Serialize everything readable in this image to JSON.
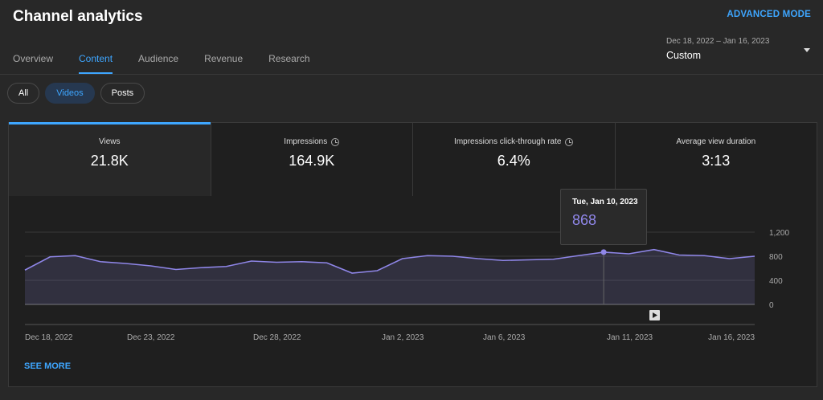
{
  "header": {
    "title": "Channel analytics",
    "advanced_mode": "ADVANCED MODE",
    "date_range": "Dec 18, 2022 – Jan 16, 2023",
    "date_preset": "Custom"
  },
  "tabs": [
    {
      "label": "Overview",
      "active": false
    },
    {
      "label": "Content",
      "active": true
    },
    {
      "label": "Audience",
      "active": false
    },
    {
      "label": "Revenue",
      "active": false
    },
    {
      "label": "Research",
      "active": false
    }
  ],
  "filter_chips": [
    {
      "label": "All",
      "active": false
    },
    {
      "label": "Videos",
      "active": true
    },
    {
      "label": "Posts",
      "active": false
    }
  ],
  "metrics": [
    {
      "label": "Views",
      "value": "21.8K",
      "active": true,
      "icon": null
    },
    {
      "label": "Impressions",
      "value": "164.9K",
      "active": false,
      "icon": "clock-icon"
    },
    {
      "label": "Impressions click-through rate",
      "value": "6.4%",
      "active": false,
      "icon": "clock-icon"
    },
    {
      "label": "Average view duration",
      "value": "3:13",
      "active": false,
      "icon": null
    }
  ],
  "tooltip": {
    "date": "Tue, Jan 10, 2023",
    "value": "868"
  },
  "see_more": "SEE MORE",
  "colors": {
    "accent": "#3ea6ff",
    "line": "#8f86e8",
    "background": "#282828"
  },
  "chart_data": {
    "type": "area",
    "series": [
      {
        "values": [
          570,
          790,
          810,
          710,
          680,
          640,
          580,
          610,
          630,
          720,
          700,
          710,
          690,
          520,
          560,
          760,
          810,
          800,
          760,
          730,
          740,
          750,
          810,
          868,
          840,
          910,
          820,
          810,
          760,
          800
        ]
      }
    ],
    "x_tick_labels": [
      "Dec 18, 2022",
      "Dec 23, 2022",
      "Dec 28, 2022",
      "Jan 2, 2023",
      "Jan 6, 2023",
      "Jan 11, 2023",
      "Jan 16, 2023"
    ],
    "y_tick_labels": [
      "1,200",
      "800",
      "400",
      "0"
    ],
    "y_ticks": [
      1200,
      800,
      400,
      0
    ],
    "ylim": [
      0,
      1200
    ],
    "highlight_index": 23,
    "grid": true
  }
}
